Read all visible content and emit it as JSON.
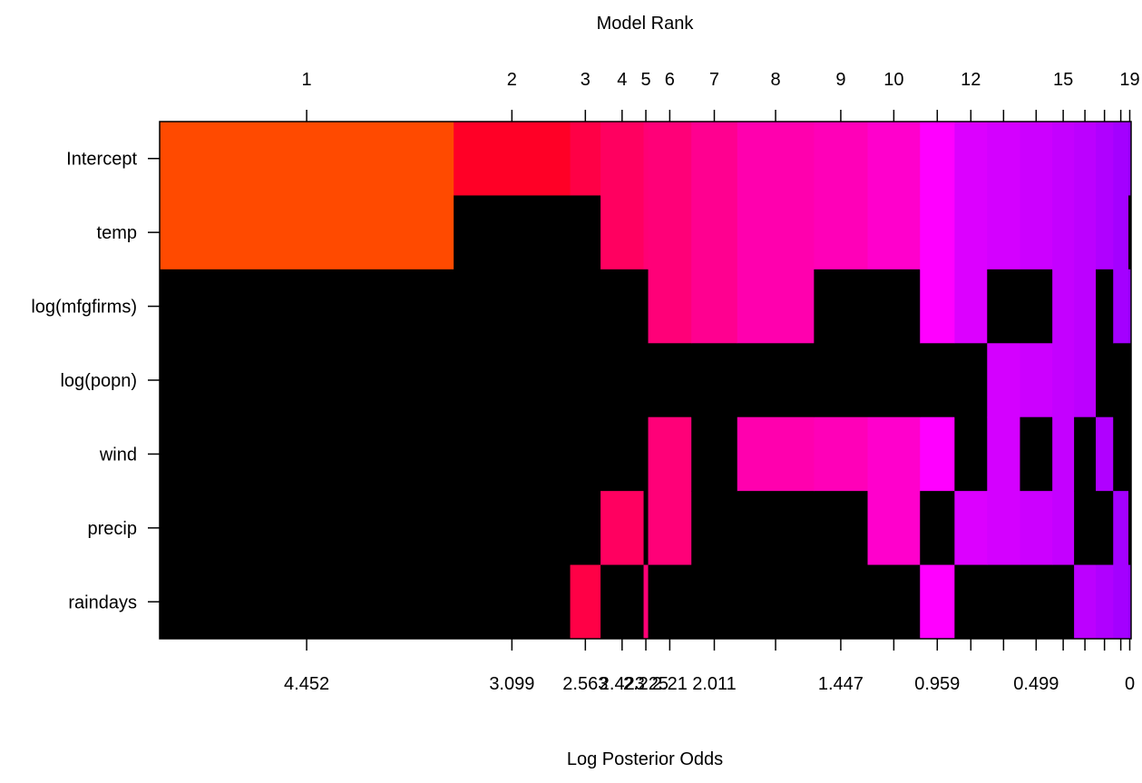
{
  "chart_data": {
    "type": "heatmap",
    "title": "",
    "top_axis_label": "Model Rank",
    "xlabel": "Log Posterior Odds",
    "ylabel": "",
    "variables": [
      "Intercept",
      "temp",
      "log(mfgfirms)",
      "log(popn)",
      "wind",
      "precip",
      "raindays"
    ],
    "top_ticks": [
      {
        "rank": 1,
        "label": "1"
      },
      {
        "rank": 2,
        "label": "2"
      },
      {
        "rank": 3,
        "label": "3"
      },
      {
        "rank": 4,
        "label": "4"
      },
      {
        "rank": 5,
        "label": "5"
      },
      {
        "rank": 6,
        "label": "6"
      },
      {
        "rank": 7,
        "label": "7"
      },
      {
        "rank": 8,
        "label": "8"
      },
      {
        "rank": 9,
        "label": "9"
      },
      {
        "rank": 10,
        "label": "10"
      },
      {
        "rank": 11,
        "label": ""
      },
      {
        "rank": 12,
        "label": "12"
      },
      {
        "rank": 13,
        "label": ""
      },
      {
        "rank": 14,
        "label": ""
      },
      {
        "rank": 15,
        "label": "15"
      },
      {
        "rank": 16,
        "label": ""
      },
      {
        "rank": 17,
        "label": ""
      },
      {
        "rank": 18,
        "label": ""
      },
      {
        "rank": 19,
        "label": "19"
      }
    ],
    "bottom_ticks": [
      {
        "rank": 1,
        "label": "4.452"
      },
      {
        "rank": 2,
        "label": "3.099"
      },
      {
        "rank": 3,
        "label": "2.563"
      },
      {
        "rank": 4,
        "label": "2.423"
      },
      {
        "rank": 5,
        "label": "2.225"
      },
      {
        "rank": 6,
        "label": "2.21"
      },
      {
        "rank": 7,
        "label": "2.011"
      },
      {
        "rank": 8,
        "label": ""
      },
      {
        "rank": 9,
        "label": "1.447"
      },
      {
        "rank": 10,
        "label": ""
      },
      {
        "rank": 11,
        "label": "0.959"
      },
      {
        "rank": 12,
        "label": ""
      },
      {
        "rank": 13,
        "label": ""
      },
      {
        "rank": 14,
        "label": "0.499"
      },
      {
        "rank": 15,
        "label": ""
      },
      {
        "rank": 16,
        "label": ""
      },
      {
        "rank": 17,
        "label": ""
      },
      {
        "rank": 18,
        "label": ""
      },
      {
        "rank": 19,
        "label": "0"
      }
    ],
    "models": [
      {
        "rank": 1,
        "log_posterior_odds": 4.452,
        "color": "#ff4a00",
        "included": [
          1,
          1,
          0,
          0,
          0,
          0,
          0
        ]
      },
      {
        "rank": 2,
        "log_posterior_odds": 3.099,
        "color": "#ff0026",
        "included": [
          1,
          0,
          0,
          0,
          0,
          0,
          0
        ]
      },
      {
        "rank": 3,
        "log_posterior_odds": 2.563,
        "color": "#ff0046",
        "included": [
          1,
          0,
          0,
          0,
          0,
          0,
          1
        ]
      },
      {
        "rank": 4,
        "log_posterior_odds": 2.423,
        "color": "#ff0060",
        "included": [
          1,
          1,
          0,
          0,
          0,
          1,
          0
        ]
      },
      {
        "rank": 5,
        "log_posterior_odds": 2.225,
        "color": "#ff0075",
        "included": [
          1,
          1,
          0,
          0,
          0,
          0,
          1
        ]
      },
      {
        "rank": 6,
        "log_posterior_odds": 2.21,
        "color": "#ff0078",
        "included": [
          1,
          1,
          1,
          0,
          1,
          1,
          0
        ]
      },
      {
        "rank": 7,
        "log_posterior_odds": 2.011,
        "color": "#ff0090",
        "included": [
          1,
          1,
          1,
          0,
          0,
          0,
          0
        ]
      },
      {
        "rank": 8,
        "log_posterior_odds": 1.8,
        "color": "#ff00ae",
        "included": [
          1,
          1,
          1,
          0,
          1,
          0,
          0
        ]
      },
      {
        "rank": 9,
        "log_posterior_odds": 1.447,
        "color": "#ff00b8",
        "included": [
          1,
          1,
          0,
          0,
          1,
          0,
          0
        ]
      },
      {
        "rank": 10,
        "log_posterior_odds": 1.2,
        "color": "#ff00cc",
        "included": [
          1,
          1,
          0,
          0,
          1,
          1,
          0
        ]
      },
      {
        "rank": 11,
        "log_posterior_odds": 0.959,
        "color": "#ff00ff",
        "included": [
          1,
          1,
          1,
          0,
          1,
          0,
          1
        ]
      },
      {
        "rank": 12,
        "log_posterior_odds": 0.8,
        "color": "#dc00ff",
        "included": [
          1,
          1,
          1,
          0,
          0,
          1,
          0
        ]
      },
      {
        "rank": 13,
        "log_posterior_odds": 0.65,
        "color": "#d400ff",
        "included": [
          1,
          1,
          0,
          1,
          1,
          1,
          0
        ]
      },
      {
        "rank": 14,
        "log_posterior_odds": 0.499,
        "color": "#cc00ff",
        "included": [
          1,
          1,
          0,
          1,
          0,
          1,
          0
        ]
      },
      {
        "rank": 15,
        "log_posterior_odds": 0.35,
        "color": "#c400ff",
        "included": [
          1,
          1,
          1,
          1,
          1,
          1,
          0
        ]
      },
      {
        "rank": 16,
        "log_posterior_odds": 0.25,
        "color": "#bc00ff",
        "included": [
          1,
          1,
          1,
          1,
          0,
          0,
          1
        ]
      },
      {
        "rank": 17,
        "log_posterior_odds": 0.15,
        "color": "#b000ff",
        "included": [
          1,
          1,
          0,
          0,
          1,
          0,
          1
        ]
      },
      {
        "rank": 18,
        "log_posterior_odds": 0.07,
        "color": "#a400ff",
        "included": [
          1,
          1,
          1,
          0,
          0,
          1,
          1
        ]
      },
      {
        "rank": 19,
        "log_posterior_odds": 0.0,
        "color": "#9800ff",
        "included": [
          1,
          0,
          1,
          0,
          0,
          0,
          1
        ]
      }
    ],
    "excluded_color": "#000000",
    "grid": false,
    "legend": "none"
  }
}
